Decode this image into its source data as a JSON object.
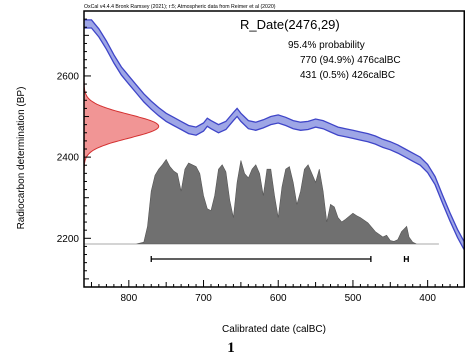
{
  "header_text": "OxCal v4.4.4 Bronk Ramsey (2021); r:5; Atmospheric data from Reimer et al (2020)",
  "figure_label": "1",
  "chart_data": {
    "type": "line",
    "title": "R_Date(2476,29)",
    "probability_heading": "95.4% probability",
    "ranges": [
      {
        "label": "770 (94.9%) 476calBC",
        "from": 770,
        "to": 476,
        "percent": 94.9
      },
      {
        "label": "431 (0.5%) 426calBC",
        "from": 431,
        "to": 426,
        "percent": 0.5
      }
    ],
    "xlabel": "Calibrated date (calBC)",
    "ylabel": "Radiocarbon determination (BP)",
    "xlim": [
      860,
      350
    ],
    "ylim": [
      2080,
      2760
    ],
    "x_ticks": [
      800,
      700,
      600,
      500,
      400
    ],
    "y_ticks": [
      2200,
      2400,
      2600
    ],
    "colors": {
      "curve_fill": "#9ea6e6",
      "curve_edge": "#3f45c8",
      "radiocarbon_fill": "#f08a8a",
      "radiocarbon_edge": "#d43030",
      "posterior_fill": "#707070"
    },
    "calibration_curve": [
      [
        860,
        2728
      ],
      [
        850,
        2728
      ],
      [
        840,
        2706
      ],
      [
        830,
        2676
      ],
      [
        820,
        2642
      ],
      [
        810,
        2612
      ],
      [
        800,
        2590
      ],
      [
        790,
        2568
      ],
      [
        780,
        2546
      ],
      [
        770,
        2528
      ],
      [
        760,
        2512
      ],
      [
        750,
        2498
      ],
      [
        740,
        2488
      ],
      [
        730,
        2478
      ],
      [
        720,
        2468
      ],
      [
        710,
        2464
      ],
      [
        700,
        2474
      ],
      [
        695,
        2486
      ],
      [
        690,
        2480
      ],
      [
        680,
        2470
      ],
      [
        670,
        2478
      ],
      [
        660,
        2500
      ],
      [
        655,
        2510
      ],
      [
        650,
        2498
      ],
      [
        640,
        2480
      ],
      [
        630,
        2476
      ],
      [
        620,
        2482
      ],
      [
        610,
        2490
      ],
      [
        600,
        2494
      ],
      [
        590,
        2488
      ],
      [
        580,
        2480
      ],
      [
        570,
        2476
      ],
      [
        560,
        2478
      ],
      [
        550,
        2484
      ],
      [
        540,
        2480
      ],
      [
        530,
        2472
      ],
      [
        520,
        2464
      ],
      [
        510,
        2460
      ],
      [
        500,
        2456
      ],
      [
        490,
        2452
      ],
      [
        480,
        2448
      ],
      [
        470,
        2442
      ],
      [
        460,
        2434
      ],
      [
        450,
        2428
      ],
      [
        440,
        2420
      ],
      [
        430,
        2410
      ],
      [
        420,
        2400
      ],
      [
        410,
        2390
      ],
      [
        400,
        2372
      ],
      [
        390,
        2342
      ],
      [
        380,
        2296
      ],
      [
        370,
        2252
      ],
      [
        360,
        2212
      ],
      [
        350,
        2178
      ]
    ],
    "curve_halfwidth": 10,
    "radiocarbon_distribution": {
      "mean": 2476,
      "sd": 29,
      "peak_width_years": 100
    },
    "posterior_distribution": [
      [
        865,
        0.0
      ],
      [
        800,
        0.0
      ],
      [
        790,
        0.0
      ],
      [
        780,
        0.02
      ],
      [
        775,
        0.2
      ],
      [
        770,
        0.6
      ],
      [
        765,
        0.78
      ],
      [
        760,
        0.85
      ],
      [
        755,
        0.9
      ],
      [
        750,
        0.96
      ],
      [
        745,
        0.88
      ],
      [
        740,
        0.83
      ],
      [
        735,
        0.8
      ],
      [
        730,
        0.6
      ],
      [
        725,
        0.85
      ],
      [
        720,
        0.92
      ],
      [
        715,
        0.9
      ],
      [
        710,
        0.88
      ],
      [
        705,
        0.8
      ],
      [
        700,
        0.55
      ],
      [
        695,
        0.4
      ],
      [
        690,
        0.38
      ],
      [
        685,
        0.55
      ],
      [
        680,
        0.85
      ],
      [
        675,
        0.9
      ],
      [
        670,
        0.82
      ],
      [
        665,
        0.5
      ],
      [
        660,
        0.3
      ],
      [
        655,
        0.7
      ],
      [
        650,
        0.95
      ],
      [
        645,
        0.8
      ],
      [
        640,
        0.75
      ],
      [
        635,
        0.85
      ],
      [
        630,
        0.9
      ],
      [
        625,
        0.8
      ],
      [
        620,
        0.55
      ],
      [
        615,
        0.85
      ],
      [
        610,
        0.85
      ],
      [
        605,
        0.55
      ],
      [
        600,
        0.3
      ],
      [
        595,
        0.65
      ],
      [
        590,
        0.85
      ],
      [
        585,
        0.88
      ],
      [
        580,
        0.7
      ],
      [
        575,
        0.45
      ],
      [
        570,
        0.6
      ],
      [
        565,
        0.85
      ],
      [
        560,
        0.9
      ],
      [
        555,
        0.8
      ],
      [
        550,
        0.7
      ],
      [
        545,
        0.85
      ],
      [
        540,
        0.6
      ],
      [
        535,
        0.25
      ],
      [
        530,
        0.45
      ],
      [
        525,
        0.42
      ],
      [
        520,
        0.3
      ],
      [
        515,
        0.25
      ],
      [
        510,
        0.28
      ],
      [
        500,
        0.35
      ],
      [
        495,
        0.32
      ],
      [
        490,
        0.3
      ],
      [
        480,
        0.24
      ],
      [
        470,
        0.14
      ],
      [
        460,
        0.08
      ],
      [
        455,
        0.1
      ],
      [
        450,
        0.04
      ],
      [
        445,
        0.03
      ],
      [
        440,
        0.05
      ],
      [
        435,
        0.14
      ],
      [
        428,
        0.2
      ],
      [
        425,
        0.08
      ],
      [
        420,
        0.02
      ],
      [
        415,
        0.0
      ],
      [
        385,
        0.0
      ]
    ]
  }
}
